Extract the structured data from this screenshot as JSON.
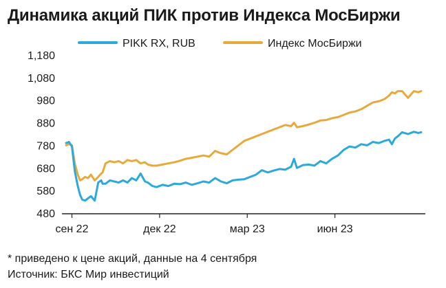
{
  "chart_data": {
    "type": "line",
    "title": "Динамика акций ПИК против Индекса МосБиржи",
    "y_ticks": [
      "1,180",
      "1,080",
      "980",
      "880",
      "780",
      "680",
      "580",
      "480"
    ],
    "ylim": [
      480,
      1180
    ],
    "x_ticks": [
      {
        "label": "сен 22",
        "x": 0
      },
      {
        "label": "дек 22",
        "x": 3
      },
      {
        "label": "мар 23",
        "x": 6
      },
      {
        "label": "июн 23",
        "x": 9
      }
    ],
    "xlim": [
      -0.2,
      12.0
    ],
    "grid": false,
    "legend": "top",
    "series": [
      {
        "name": "PIKK RX, RUB",
        "color": "#2ba8dc",
        "x": [
          -0.2,
          -0.1,
          0,
          0.1,
          0.2,
          0.28,
          0.35,
          0.45,
          0.55,
          0.65,
          0.78,
          0.9,
          1.0,
          1.05,
          1.15,
          1.3,
          1.45,
          1.6,
          1.75,
          1.9,
          2.05,
          2.2,
          2.35,
          2.5,
          2.6,
          2.75,
          2.9,
          3.1,
          3.3,
          3.5,
          3.7,
          3.9,
          4.1,
          4.3,
          4.5,
          4.7,
          4.9,
          5.1,
          5.3,
          5.5,
          5.7,
          5.9,
          6.1,
          6.3,
          6.5,
          6.7,
          6.9,
          7.1,
          7.3,
          7.5,
          7.6,
          7.7,
          7.9,
          8.1,
          8.3,
          8.5,
          8.7,
          8.9,
          9.1,
          9.3,
          9.5,
          9.7,
          9.9,
          10.1,
          10.3,
          10.5,
          10.7,
          10.85,
          10.95,
          11.05,
          11.15,
          11.3,
          11.5,
          11.7,
          11.85,
          11.95
        ],
        "y": [
          790,
          795,
          775,
          665,
          600,
          560,
          540,
          535,
          545,
          555,
          535,
          615,
          625,
          610,
          610,
          625,
          620,
          615,
          625,
          615,
          635,
          625,
          655,
          620,
          615,
          600,
          595,
          605,
          600,
          610,
          608,
          615,
          605,
          612,
          620,
          615,
          635,
          620,
          612,
          625,
          628,
          630,
          640,
          650,
          670,
          660,
          668,
          675,
          672,
          685,
          720,
          680,
          692,
          695,
          690,
          710,
          700,
          720,
          735,
          760,
          775,
          770,
          785,
          780,
          795,
          790,
          800,
          805,
          785,
          810,
          820,
          838,
          830,
          840,
          835,
          838
        ]
      },
      {
        "name": "Индекс МосБиржи",
        "color": "#e8a93a",
        "x": [
          -0.2,
          -0.1,
          0,
          0.1,
          0.2,
          0.28,
          0.35,
          0.45,
          0.55,
          0.65,
          0.78,
          0.9,
          1.0,
          1.05,
          1.15,
          1.3,
          1.45,
          1.6,
          1.75,
          1.9,
          2.05,
          2.2,
          2.35,
          2.5,
          2.6,
          2.75,
          2.9,
          3.1,
          3.3,
          3.5,
          3.7,
          3.9,
          4.1,
          4.3,
          4.5,
          4.7,
          4.9,
          5.1,
          5.3,
          5.5,
          5.7,
          5.9,
          6.1,
          6.3,
          6.5,
          6.7,
          6.9,
          7.1,
          7.3,
          7.5,
          7.6,
          7.7,
          7.9,
          8.1,
          8.3,
          8.5,
          8.7,
          8.9,
          9.1,
          9.3,
          9.5,
          9.7,
          9.9,
          10.1,
          10.3,
          10.5,
          10.7,
          10.85,
          10.95,
          11.05,
          11.15,
          11.3,
          11.5,
          11.7,
          11.85,
          11.95
        ],
        "y": [
          780,
          785,
          780,
          700,
          650,
          625,
          630,
          640,
          635,
          650,
          625,
          640,
          655,
          660,
          700,
          710,
          705,
          710,
          700,
          715,
          710,
          715,
          700,
          705,
          695,
          690,
          690,
          695,
          700,
          705,
          712,
          720,
          725,
          730,
          735,
          730,
          755,
          745,
          740,
          760,
          780,
          800,
          810,
          820,
          830,
          840,
          850,
          860,
          870,
          865,
          880,
          860,
          865,
          872,
          880,
          890,
          892,
          900,
          905,
          915,
          925,
          930,
          940,
          955,
          970,
          975,
          985,
          1000,
          1015,
          1010,
          1020,
          1020,
          990,
          1020,
          1015,
          1020
        ]
      }
    ],
    "footnotes": [
      "*  приведено к цене акций, данные на 4 сентября",
      "Источник: БКС Мир инвестиций"
    ]
  }
}
